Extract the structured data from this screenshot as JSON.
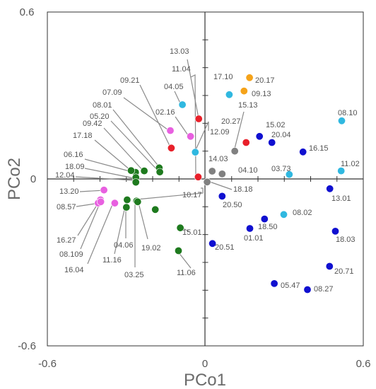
{
  "chart_data": {
    "type": "scatter",
    "xlabel": "PCo1",
    "ylabel": "PCo2",
    "xlim": [
      -0.6,
      0.6
    ],
    "ylim": [
      -0.6,
      0.6
    ],
    "x_tick_labels": [
      "-0.6",
      "0",
      "0.6"
    ],
    "y_tick_labels": [
      "0.6",
      "0",
      "-0.6"
    ],
    "grid": false,
    "colors": {
      "red": "#e8202a",
      "magenta": "#e860e0",
      "green": "#1e7a1e",
      "cyan": "#30b8e0",
      "orange": "#f5a31a",
      "gray": "#808080",
      "blue": "#1010d0"
    },
    "points": [
      {
        "label": "13.03",
        "x": -0.025,
        "y": 0.216,
        "color": "red"
      },
      {
        "label": "11.04",
        "x": -0.027,
        "y": 0.007,
        "color": "red"
      },
      {
        "label": "09.21",
        "x": -0.129,
        "y": 0.111,
        "color": "red"
      },
      {
        "label": "20.27",
        "x": 0.155,
        "y": 0.131,
        "color": "red"
      },
      {
        "label": "04.05",
        "x": -0.087,
        "y": 0.267,
        "color": "cyan"
      },
      {
        "label": "12.09",
        "x": -0.038,
        "y": 0.096,
        "color": "cyan"
      },
      {
        "label": "17.10",
        "x": 0.091,
        "y": 0.303,
        "color": "cyan"
      },
      {
        "label": "08.10",
        "x": 0.518,
        "y": 0.209,
        "color": "cyan"
      },
      {
        "label": "11.02",
        "x": 0.516,
        "y": 0.029,
        "color": "cyan"
      },
      {
        "label": "03.73",
        "x": 0.319,
        "y": 0.016,
        "color": "cyan"
      },
      {
        "label": "08.02",
        "x": 0.298,
        "y": -0.128,
        "color": "cyan"
      },
      {
        "label": "20.17",
        "x": 0.168,
        "y": 0.364,
        "color": "orange"
      },
      {
        "label": "09.13",
        "x": 0.147,
        "y": 0.316,
        "color": "orange"
      },
      {
        "label": "07.09",
        "x": -0.133,
        "y": 0.174,
        "color": "magenta"
      },
      {
        "label": "02.16",
        "x": -0.056,
        "y": 0.153,
        "color": "magenta"
      },
      {
        "label": "13.20",
        "x": -0.385,
        "y": -0.04,
        "color": "magenta"
      },
      {
        "label": "08.57",
        "x": -0.398,
        "y": -0.075,
        "color": "magenta"
      },
      {
        "label": "16.27",
        "x": -0.407,
        "y": -0.087,
        "color": "magenta"
      },
      {
        "label": "08.109",
        "x": -0.397,
        "y": -0.082,
        "color": "magenta"
      },
      {
        "label": "16.04",
        "x": -0.344,
        "y": -0.087,
        "color": "magenta"
      },
      {
        "label": "08.01",
        "x": -0.175,
        "y": 0.04,
        "color": "green"
      },
      {
        "label": "05.20",
        "x": -0.173,
        "y": 0.025,
        "color": "green"
      },
      {
        "label": "09.42",
        "x": -0.232,
        "y": 0.029,
        "color": "green"
      },
      {
        "label": "17.18",
        "x": -0.265,
        "y": 0.024,
        "color": "green"
      },
      {
        "label": "06.16",
        "x": -0.282,
        "y": 0.03,
        "color": "green"
      },
      {
        "label": "18.09",
        "x": -0.264,
        "y": 0.005,
        "color": "green"
      },
      {
        "label": "12.04",
        "x": -0.264,
        "y": -0.012,
        "color": "green"
      },
      {
        "label": "04.06",
        "x": -0.297,
        "y": -0.075,
        "color": "green"
      },
      {
        "label": "11.16",
        "x": -0.3,
        "y": -0.102,
        "color": "green"
      },
      {
        "label": "03.25",
        "x": -0.261,
        "y": -0.079,
        "color": "green"
      },
      {
        "label": "19.02",
        "x": -0.257,
        "y": -0.082,
        "color": "green"
      },
      {
        "label": "10.17",
        "x": -0.19,
        "y": -0.11,
        "color": "green"
      },
      {
        "label": "15.01",
        "x": -0.095,
        "y": -0.176,
        "color": "green"
      },
      {
        "label": "11.06",
        "x": -0.102,
        "y": -0.258,
        "color": "green"
      },
      {
        "label": "14.03",
        "x": 0.026,
        "y": 0.028,
        "color": "gray"
      },
      {
        "label": "04.10",
        "x": 0.064,
        "y": 0.018,
        "color": "gray"
      },
      {
        "label": "15.13",
        "x": 0.112,
        "y": 0.1,
        "color": "gray"
      },
      {
        "label": "18.18",
        "x": 0.007,
        "y": -0.011,
        "color": "gray"
      },
      {
        "label": "15.02",
        "x": 0.206,
        "y": 0.153,
        "color": "blue"
      },
      {
        "label": "20.04",
        "x": 0.253,
        "y": 0.131,
        "color": "blue"
      },
      {
        "label": "16.15",
        "x": 0.371,
        "y": 0.097,
        "color": "blue"
      },
      {
        "label": "20.50",
        "x": 0.064,
        "y": -0.062,
        "color": "blue"
      },
      {
        "label": "13.01",
        "x": 0.473,
        "y": -0.035,
        "color": "blue"
      },
      {
        "label": "18.50",
        "x": 0.225,
        "y": -0.144,
        "color": "blue"
      },
      {
        "label": "01.01",
        "x": 0.169,
        "y": -0.178,
        "color": "blue"
      },
      {
        "label": "18.03",
        "x": 0.494,
        "y": -0.188,
        "color": "blue"
      },
      {
        "label": "20.51",
        "x": 0.027,
        "y": -0.232,
        "color": "blue"
      },
      {
        "label": "20.71",
        "x": 0.472,
        "y": -0.314,
        "color": "blue"
      },
      {
        "label": "05.47",
        "x": 0.262,
        "y": -0.376,
        "color": "blue"
      },
      {
        "label": "08.27",
        "x": 0.388,
        "y": -0.398,
        "color": "blue"
      }
    ]
  }
}
